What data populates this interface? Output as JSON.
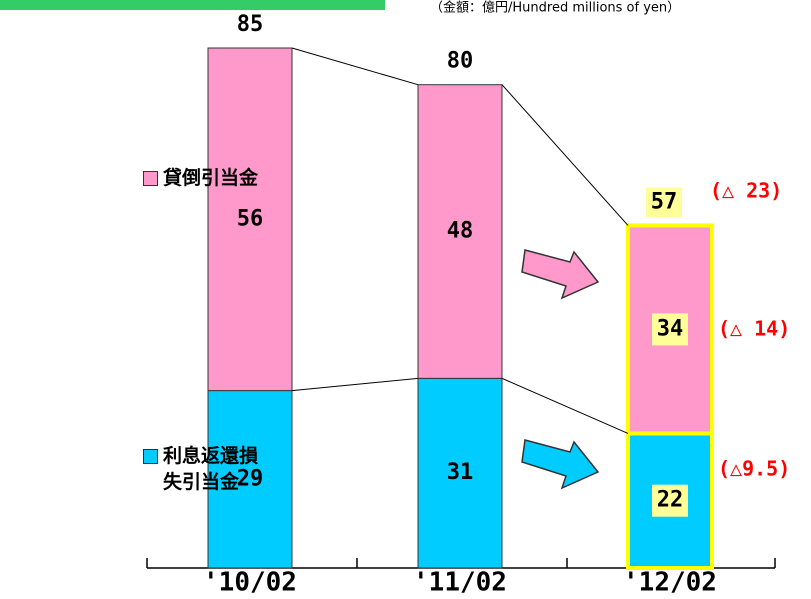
{
  "chart_data": {
    "type": "stacked_bar",
    "unit_note": "（金額：億円/Hundred millions of yen）",
    "categories": [
      "'10/02",
      "'11/02",
      "'12/02"
    ],
    "series": [
      {
        "name": "利息返還損失引当金",
        "color": "#00ccff",
        "values": [
          29,
          31,
          22
        ]
      },
      {
        "name": "貸倒引当金",
        "color": "#ff99cc",
        "values": [
          56,
          48,
          34
        ]
      }
    ],
    "totals": [
      85,
      80,
      57
    ],
    "annotations": [
      "(△ 23)",
      "(△ 14)",
      "(△9.5)"
    ]
  }
}
